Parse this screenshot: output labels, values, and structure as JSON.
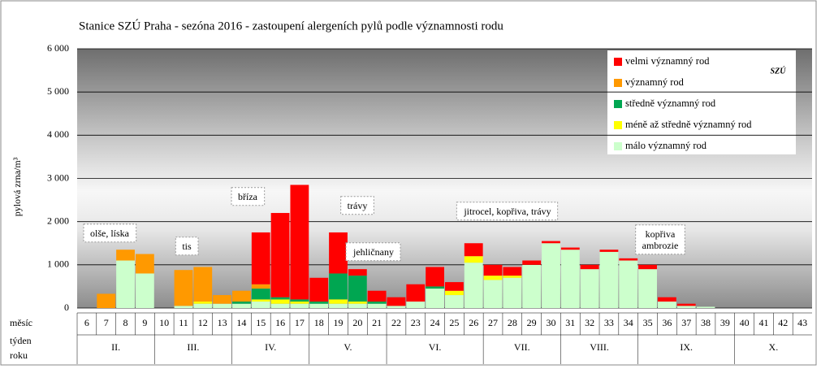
{
  "chart_data": {
    "type": "stacked_bar",
    "title": "Stanice SZÚ Praha - sezóna 2016 - zastoupení alergeních pylů podle významnosti rodu",
    "y_label": "pylová zrna/m³",
    "logo": "SZÚ",
    "row_labels": [
      "měsíc",
      "týden",
      "roku"
    ],
    "categories": [
      "6",
      "7",
      "8",
      "9",
      "10",
      "11",
      "12",
      "13",
      "14",
      "15",
      "16",
      "17",
      "18",
      "19",
      "20",
      "21",
      "22",
      "23",
      "24",
      "25",
      "26",
      "27",
      "28",
      "29",
      "30",
      "31",
      "32",
      "33",
      "34",
      "35",
      "36",
      "37",
      "38",
      "39",
      "40",
      "41",
      "42",
      "43"
    ],
    "months": [
      "II.",
      "III.",
      "IV.",
      "V.",
      "VI.",
      "VII.",
      "VIII.",
      "IX.",
      "X."
    ],
    "series": [
      {
        "name": "málo významný rod",
        "color": "#ccffcc",
        "values": [
          0,
          0,
          1100,
          800,
          0,
          50,
          100,
          100,
          100,
          150,
          100,
          100,
          100,
          100,
          100,
          100,
          50,
          150,
          450,
          300,
          1050,
          650,
          700,
          1000,
          1500,
          1350,
          900,
          1300,
          1100,
          900,
          150,
          50,
          30,
          0,
          0,
          0,
          0,
          0
        ]
      },
      {
        "name": "méně až středně významný rod",
        "color": "#ffff00",
        "values": [
          0,
          0,
          0,
          0,
          0,
          0,
          50,
          0,
          0,
          50,
          100,
          50,
          0,
          100,
          50,
          0,
          0,
          0,
          0,
          100,
          150,
          100,
          50,
          0,
          0,
          0,
          0,
          0,
          0,
          0,
          0,
          0,
          0,
          0,
          0,
          0,
          0,
          0
        ]
      },
      {
        "name": "středně významný rod",
        "color": "#00a651",
        "values": [
          0,
          0,
          0,
          0,
          0,
          0,
          0,
          0,
          50,
          250,
          50,
          50,
          50,
          600,
          600,
          50,
          0,
          0,
          50,
          0,
          0,
          0,
          0,
          0,
          0,
          0,
          0,
          0,
          0,
          0,
          0,
          0,
          0,
          0,
          0,
          0,
          0,
          0
        ]
      },
      {
        "name": "významný rod",
        "color": "#ff9900",
        "values": [
          0,
          330,
          250,
          450,
          0,
          830,
          800,
          200,
          250,
          100,
          0,
          0,
          0,
          0,
          0,
          0,
          0,
          0,
          0,
          0,
          0,
          0,
          0,
          0,
          0,
          0,
          0,
          0,
          0,
          0,
          0,
          0,
          0,
          0,
          0,
          0,
          0,
          0
        ]
      },
      {
        "name": "velmi významný rod",
        "color": "#ff0000",
        "values": [
          0,
          0,
          0,
          0,
          0,
          0,
          0,
          0,
          0,
          1200,
          1950,
          2650,
          550,
          950,
          150,
          250,
          200,
          400,
          450,
          200,
          300,
          250,
          200,
          100,
          50,
          50,
          100,
          50,
          50,
          100,
          100,
          50,
          0,
          0,
          0,
          0,
          0,
          0
        ]
      }
    ],
    "annotations": [
      "olše, líska",
      "tis",
      "bříza",
      "trávy",
      "jehličnany",
      "jitrocel, kopřiva, trávy",
      "kopřiva ambrozie"
    ],
    "ylim": [
      0,
      6000
    ],
    "yticks": [
      0,
      {
        "value": 1000,
        "label": "1 000"
      },
      {
        "value": 2000,
        "label": "2 000"
      },
      {
        "value": 3000,
        "label": "3 000"
      },
      {
        "value": 4000,
        "label": "4 000"
      },
      {
        "value": 5000,
        "label": "5 000"
      },
      {
        "value": 6000,
        "label": "6 000"
      }
    ],
    "grid": true
  }
}
